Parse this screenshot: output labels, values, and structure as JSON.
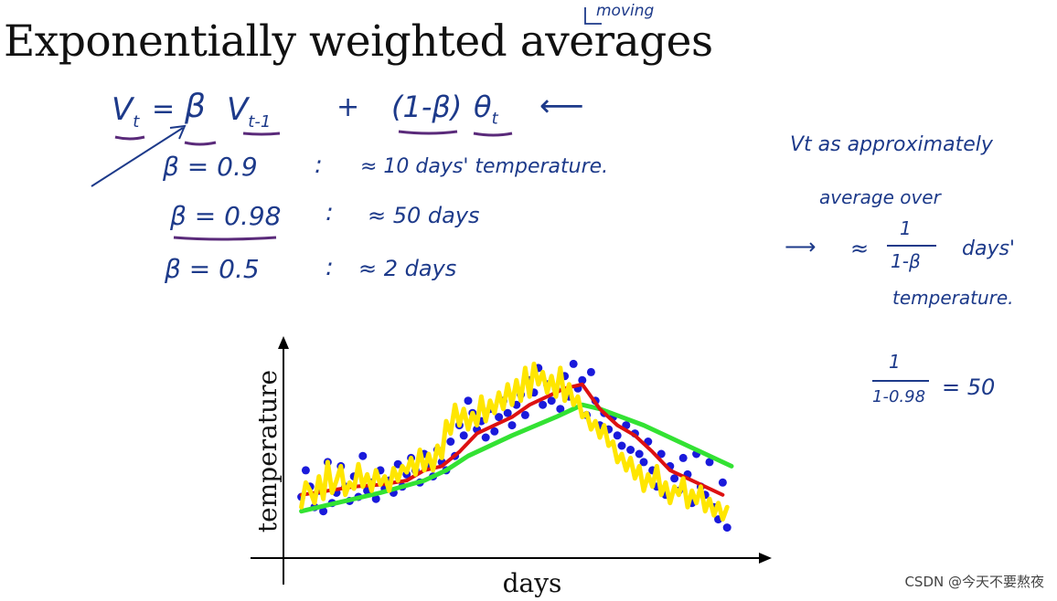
{
  "title": "Exponentially weighted averages",
  "title_note": "moving",
  "formula": {
    "lhs": "V",
    "lhs_sub": "t",
    "eq": "=",
    "beta": "β",
    "v_prev": "V",
    "v_prev_sub": "t-1",
    "plus": "+",
    "one_minus_beta": "(1-β)",
    "theta": "θ",
    "theta_sub": "t",
    "arrow": "⟵"
  },
  "beta_rows": [
    {
      "beta": "β = 0.9",
      "sep": ":",
      "approx": "≈ 10 days' temperature."
    },
    {
      "beta": "β = 0.98",
      "sep": ":",
      "approx": "≈ 50 days"
    },
    {
      "beta": "β = 0.5",
      "sep": ":",
      "approx": "≈ 2 days"
    }
  ],
  "side_note": {
    "line1": "Vt as approximately",
    "line2": "average over",
    "arrow": "⟶",
    "approx": "≈",
    "frac_num": "1",
    "frac_den": "1-β",
    "days": "days'",
    "line4": "temperature."
  },
  "calc": {
    "num": "1",
    "den": "1-0.98",
    "result": "= 50"
  },
  "chart_data": {
    "type": "scatter",
    "xlabel": "days",
    "ylabel": "temperature",
    "grid": false,
    "xlim": [
      0,
      100
    ],
    "ylim": [
      0,
      100
    ],
    "colors": {
      "points": "#1a1adb",
      "beta_05": "#ffe600",
      "beta_09": "#dd1111",
      "beta_098": "#33e233",
      "axes": "#000000"
    },
    "points": [
      [
        2,
        25
      ],
      [
        3,
        38
      ],
      [
        4,
        30
      ],
      [
        5,
        20
      ],
      [
        6,
        28
      ],
      [
        7,
        18
      ],
      [
        8,
        42
      ],
      [
        9,
        22
      ],
      [
        10,
        27
      ],
      [
        11,
        40
      ],
      [
        12,
        30
      ],
      [
        13,
        23
      ],
      [
        14,
        35
      ],
      [
        15,
        25
      ],
      [
        16,
        45
      ],
      [
        17,
        28
      ],
      [
        18,
        32
      ],
      [
        19,
        24
      ],
      [
        20,
        38
      ],
      [
        21,
        29
      ],
      [
        22,
        33
      ],
      [
        23,
        27
      ],
      [
        24,
        41
      ],
      [
        25,
        30
      ],
      [
        26,
        36
      ],
      [
        27,
        44
      ],
      [
        28,
        38
      ],
      [
        29,
        32
      ],
      [
        30,
        46
      ],
      [
        31,
        40
      ],
      [
        32,
        35
      ],
      [
        33,
        48
      ],
      [
        34,
        42
      ],
      [
        35,
        38
      ],
      [
        36,
        52
      ],
      [
        37,
        45
      ],
      [
        38,
        60
      ],
      [
        39,
        55
      ],
      [
        40,
        72
      ],
      [
        41,
        66
      ],
      [
        42,
        58
      ],
      [
        43,
        62
      ],
      [
        44,
        54
      ],
      [
        45,
        68
      ],
      [
        46,
        57
      ],
      [
        47,
        64
      ],
      [
        48,
        72
      ],
      [
        49,
        66
      ],
      [
        50,
        60
      ],
      [
        51,
        70
      ],
      [
        52,
        75
      ],
      [
        53,
        65
      ],
      [
        54,
        82
      ],
      [
        55,
        76
      ],
      [
        56,
        88
      ],
      [
        57,
        70
      ],
      [
        58,
        80
      ],
      [
        59,
        72
      ],
      [
        60,
        78
      ],
      [
        61,
        68
      ],
      [
        62,
        84
      ],
      [
        63,
        74
      ],
      [
        64,
        90
      ],
      [
        65,
        78
      ],
      [
        66,
        82
      ],
      [
        67,
        65
      ],
      [
        68,
        86
      ],
      [
        69,
        72
      ],
      [
        70,
        60
      ],
      [
        71,
        66
      ],
      [
        72,
        58
      ],
      [
        73,
        64
      ],
      [
        74,
        55
      ],
      [
        75,
        50
      ],
      [
        76,
        60
      ],
      [
        77,
        48
      ],
      [
        78,
        56
      ],
      [
        79,
        46
      ],
      [
        80,
        42
      ],
      [
        81,
        52
      ],
      [
        82,
        38
      ],
      [
        83,
        30
      ],
      [
        84,
        46
      ],
      [
        85,
        26
      ],
      [
        86,
        40
      ],
      [
        87,
        34
      ],
      [
        88,
        28
      ],
      [
        89,
        44
      ],
      [
        90,
        36
      ],
      [
        91,
        22
      ],
      [
        92,
        46
      ],
      [
        93,
        30
      ],
      [
        94,
        26
      ],
      [
        95,
        42
      ],
      [
        96,
        20
      ],
      [
        97,
        14
      ],
      [
        98,
        32
      ],
      [
        99,
        10
      ]
    ],
    "series": [
      {
        "line": "beta_098",
        "values": [
          [
            2,
            18
          ],
          [
            10,
            22
          ],
          [
            20,
            27
          ],
          [
            30,
            33
          ],
          [
            35,
            38
          ],
          [
            40,
            45
          ],
          [
            50,
            55
          ],
          [
            60,
            64
          ],
          [
            66,
            70
          ],
          [
            70,
            68
          ],
          [
            80,
            60
          ],
          [
            90,
            50
          ],
          [
            100,
            40
          ]
        ]
      },
      {
        "line": "beta_09",
        "values": [
          [
            2,
            26
          ],
          [
            8,
            28
          ],
          [
            14,
            30
          ],
          [
            20,
            31
          ],
          [
            26,
            33
          ],
          [
            30,
            38
          ],
          [
            34,
            40
          ],
          [
            38,
            47
          ],
          [
            42,
            56
          ],
          [
            46,
            60
          ],
          [
            50,
            64
          ],
          [
            54,
            70
          ],
          [
            58,
            74
          ],
          [
            62,
            78
          ],
          [
            66,
            80
          ],
          [
            70,
            68
          ],
          [
            74,
            60
          ],
          [
            78,
            55
          ],
          [
            82,
            47
          ],
          [
            86,
            38
          ],
          [
            90,
            34
          ],
          [
            94,
            30
          ],
          [
            98,
            26
          ]
        ]
      },
      {
        "line": "beta_05",
        "values": [
          [
            2,
            20
          ],
          [
            3,
            32
          ],
          [
            4,
            28
          ],
          [
            5,
            22
          ],
          [
            6,
            35
          ],
          [
            7,
            24
          ],
          [
            8,
            42
          ],
          [
            9,
            27
          ],
          [
            10,
            33
          ],
          [
            11,
            40
          ],
          [
            12,
            26
          ],
          [
            13,
            32
          ],
          [
            14,
            29
          ],
          [
            15,
            41
          ],
          [
            16,
            30
          ],
          [
            17,
            36
          ],
          [
            18,
            28
          ],
          [
            19,
            38
          ],
          [
            20,
            31
          ],
          [
            21,
            35
          ],
          [
            22,
            28
          ],
          [
            23,
            39
          ],
          [
            24,
            33
          ],
          [
            25,
            40
          ],
          [
            26,
            37
          ],
          [
            27,
            44
          ],
          [
            28,
            36
          ],
          [
            29,
            48
          ],
          [
            30,
            38
          ],
          [
            31,
            46
          ],
          [
            32,
            38
          ],
          [
            33,
            50
          ],
          [
            34,
            44
          ],
          [
            35,
            62
          ],
          [
            36,
            56
          ],
          [
            37,
            70
          ],
          [
            38,
            60
          ],
          [
            39,
            68
          ],
          [
            40,
            58
          ],
          [
            41,
            66
          ],
          [
            42,
            60
          ],
          [
            43,
            74
          ],
          [
            44,
            62
          ],
          [
            45,
            72
          ],
          [
            46,
            66
          ],
          [
            47,
            76
          ],
          [
            48,
            68
          ],
          [
            49,
            80
          ],
          [
            50,
            70
          ],
          [
            51,
            82
          ],
          [
            52,
            72
          ],
          [
            53,
            88
          ],
          [
            54,
            74
          ],
          [
            55,
            90
          ],
          [
            56,
            80
          ],
          [
            57,
            86
          ],
          [
            58,
            76
          ],
          [
            59,
            84
          ],
          [
            60,
            74
          ],
          [
            61,
            88
          ],
          [
            62,
            72
          ],
          [
            63,
            80
          ],
          [
            64,
            70
          ],
          [
            65,
            74
          ],
          [
            66,
            64
          ],
          [
            67,
            66
          ],
          [
            68,
            58
          ],
          [
            69,
            62
          ],
          [
            70,
            54
          ],
          [
            71,
            60
          ],
          [
            72,
            50
          ],
          [
            73,
            52
          ],
          [
            74,
            42
          ],
          [
            75,
            46
          ],
          [
            76,
            38
          ],
          [
            77,
            44
          ],
          [
            78,
            34
          ],
          [
            79,
            40
          ],
          [
            80,
            28
          ],
          [
            81,
            36
          ],
          [
            82,
            30
          ],
          [
            83,
            40
          ],
          [
            84,
            26
          ],
          [
            85,
            32
          ],
          [
            86,
            22
          ],
          [
            87,
            30
          ],
          [
            88,
            26
          ],
          [
            89,
            34
          ],
          [
            90,
            20
          ],
          [
            91,
            28
          ],
          [
            92,
            22
          ],
          [
            93,
            30
          ],
          [
            94,
            18
          ],
          [
            95,
            24
          ],
          [
            96,
            16
          ],
          [
            97,
            22
          ],
          [
            98,
            14
          ],
          [
            99,
            20
          ]
        ]
      }
    ]
  },
  "watermark": "CSDN @今天不要熬夜"
}
